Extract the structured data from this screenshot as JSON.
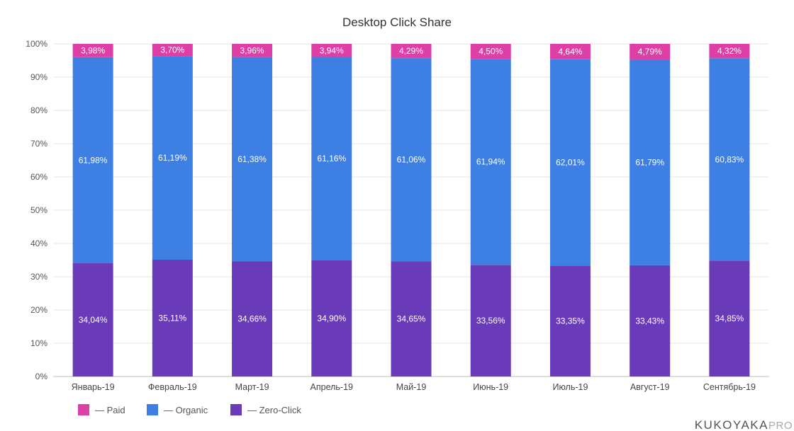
{
  "chart_data": {
    "type": "bar",
    "stacked": true,
    "title": "Desktop Click Share",
    "xlabel": "",
    "ylabel": "",
    "ylim": [
      0,
      100
    ],
    "yticks": [
      "0%",
      "10%",
      "20%",
      "30%",
      "40%",
      "50%",
      "60%",
      "70%",
      "80%",
      "90%",
      "100%"
    ],
    "grid": true,
    "legend_position": "bottom-left",
    "categories": [
      "Январь-19",
      "Февраль-19",
      "Март-19",
      "Апрель-19",
      "Май-19",
      "Июнь-19",
      "Июль-19",
      "Август-19",
      "Сентябрь-19"
    ],
    "series": [
      {
        "name": "Zero-Click",
        "legend_label": "— Zero-Click",
        "color": "#6a3bb9",
        "values": [
          34.04,
          35.11,
          34.66,
          34.9,
          34.65,
          33.56,
          33.35,
          33.43,
          34.85
        ],
        "labels": [
          "34,04%",
          "35,11%",
          "34,66%",
          "34,90%",
          "34,65%",
          "33,56%",
          "33,35%",
          "33,43%",
          "34,85%"
        ]
      },
      {
        "name": "Organic",
        "legend_label": "— Organic",
        "color": "#3d7fe3",
        "values": [
          61.98,
          61.19,
          61.38,
          61.16,
          61.06,
          61.94,
          62.01,
          61.79,
          60.83
        ],
        "labels": [
          "61,98%",
          "61,19%",
          "61,38%",
          "61,16%",
          "61,06%",
          "61,94%",
          "62,01%",
          "61,79%",
          "60,83%"
        ]
      },
      {
        "name": "Paid",
        "legend_label": "— Paid",
        "color": "#de3fa6",
        "values": [
          3.98,
          3.7,
          3.96,
          3.94,
          4.29,
          4.5,
          4.64,
          4.79,
          4.32
        ],
        "labels": [
          "3,98%",
          "3,70%",
          "3,96%",
          "3,94%",
          "4,29%",
          "4,50%",
          "4,64%",
          "4,79%",
          "4,32%"
        ]
      }
    ],
    "legend_order": [
      "Paid",
      "Organic",
      "Zero-Click"
    ]
  },
  "brand": {
    "name": "KUKOYAKA",
    "suffix": "PRO"
  }
}
